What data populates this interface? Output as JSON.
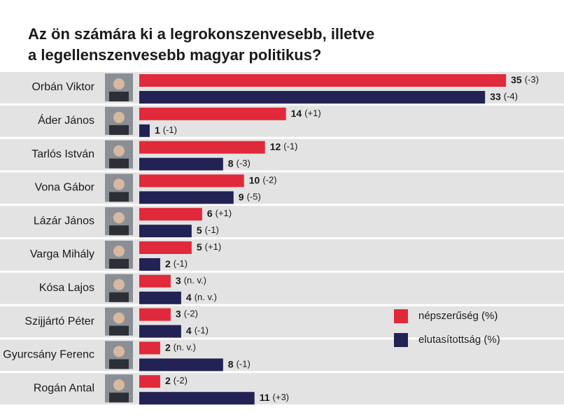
{
  "chart_data": {
    "type": "bar",
    "orientation": "horizontal",
    "title": [
      "Az ön számára ki a legrokonszenvesebb, illetve",
      "a legellenszenvesebb magyar politikus?"
    ],
    "categories": [
      "Orbán Viktor",
      "Áder János",
      "Tarlós István",
      "Vona Gábor",
      "Lázár János",
      "Varga Mihály",
      "Kósa Lajos",
      "Szijjártó Péter",
      "Gyurcsány Ferenc",
      "Rogán Antal"
    ],
    "series": [
      {
        "name": "népszerűség (%)",
        "color": "#e0293a",
        "values": [
          35,
          14,
          12,
          10,
          6,
          5,
          3,
          3,
          2,
          2
        ],
        "changes": [
          "(-3)",
          "(+1)",
          "(-1)",
          "(-2)",
          "(+1)",
          "(+1)",
          "(n. v.)",
          "(-2)",
          "(n. v.)",
          "(-2)"
        ]
      },
      {
        "name": "elutasítottság (%)",
        "color": "#232255",
        "values": [
          33,
          1,
          8,
          9,
          5,
          2,
          4,
          4,
          8,
          11
        ],
        "changes": [
          "(-4)",
          "(-1)",
          "(-3)",
          "(-5)",
          "(-1)",
          "(-1)",
          "(n. v.)",
          "(-1)",
          "(-1)",
          "(+3)"
        ]
      }
    ],
    "xlim": [
      0,
      40
    ]
  }
}
